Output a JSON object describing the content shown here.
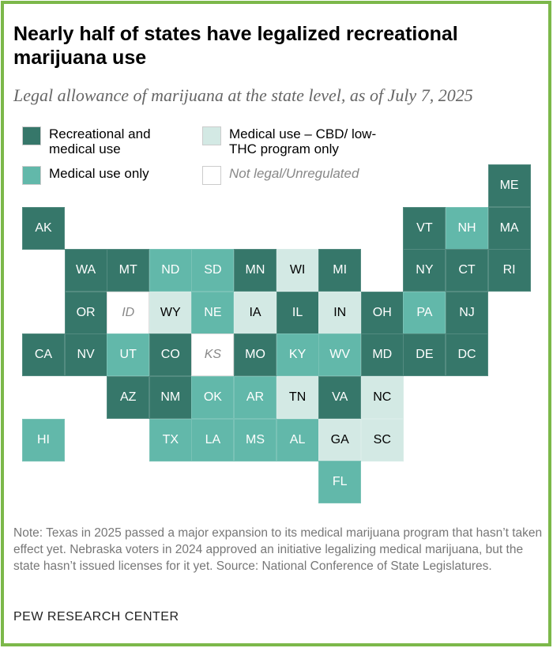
{
  "title": "Nearly half of states have legalized recreational marijuana use",
  "subtitle": "Legal allowance of marijuana at the state level, as of July 7, 2025",
  "legend": [
    {
      "key": "R",
      "label": "Recreational and medical use",
      "color": "#36776a"
    },
    {
      "key": "C",
      "label": "Medical use – CBD/ low-THC program only",
      "color": "#d3e9e4"
    },
    {
      "key": "M",
      "label": "Medical use only",
      "color": "#62b8aa"
    },
    {
      "key": "N",
      "label": "Not legal/Unregulated",
      "color": "#ffffff"
    }
  ],
  "states": [
    {
      "abbr": "ME",
      "cat": "R",
      "row": 0,
      "col": 11
    },
    {
      "abbr": "AK",
      "cat": "R",
      "row": 1,
      "col": 0
    },
    {
      "abbr": "VT",
      "cat": "R",
      "row": 1,
      "col": 9
    },
    {
      "abbr": "NH",
      "cat": "M",
      "row": 1,
      "col": 10
    },
    {
      "abbr": "MA",
      "cat": "R",
      "row": 1,
      "col": 11
    },
    {
      "abbr": "WA",
      "cat": "R",
      "row": 2,
      "col": 1
    },
    {
      "abbr": "MT",
      "cat": "R",
      "row": 2,
      "col": 2
    },
    {
      "abbr": "ND",
      "cat": "M",
      "row": 2,
      "col": 3
    },
    {
      "abbr": "SD",
      "cat": "M",
      "row": 2,
      "col": 4
    },
    {
      "abbr": "MN",
      "cat": "R",
      "row": 2,
      "col": 5
    },
    {
      "abbr": "WI",
      "cat": "C",
      "row": 2,
      "col": 6
    },
    {
      "abbr": "MI",
      "cat": "R",
      "row": 2,
      "col": 7
    },
    {
      "abbr": "NY",
      "cat": "R",
      "row": 2,
      "col": 9
    },
    {
      "abbr": "CT",
      "cat": "R",
      "row": 2,
      "col": 10
    },
    {
      "abbr": "RI",
      "cat": "R",
      "row": 2,
      "col": 11
    },
    {
      "abbr": "OR",
      "cat": "R",
      "row": 3,
      "col": 1
    },
    {
      "abbr": "ID",
      "cat": "N",
      "row": 3,
      "col": 2
    },
    {
      "abbr": "WY",
      "cat": "C",
      "row": 3,
      "col": 3
    },
    {
      "abbr": "NE",
      "cat": "M",
      "row": 3,
      "col": 4
    },
    {
      "abbr": "IA",
      "cat": "C",
      "row": 3,
      "col": 5
    },
    {
      "abbr": "IL",
      "cat": "R",
      "row": 3,
      "col": 6
    },
    {
      "abbr": "IN",
      "cat": "C",
      "row": 3,
      "col": 7
    },
    {
      "abbr": "OH",
      "cat": "R",
      "row": 3,
      "col": 8
    },
    {
      "abbr": "PA",
      "cat": "M",
      "row": 3,
      "col": 9
    },
    {
      "abbr": "NJ",
      "cat": "R",
      "row": 3,
      "col": 10
    },
    {
      "abbr": "CA",
      "cat": "R",
      "row": 4,
      "col": 0
    },
    {
      "abbr": "NV",
      "cat": "R",
      "row": 4,
      "col": 1
    },
    {
      "abbr": "UT",
      "cat": "M",
      "row": 4,
      "col": 2
    },
    {
      "abbr": "CO",
      "cat": "R",
      "row": 4,
      "col": 3
    },
    {
      "abbr": "KS",
      "cat": "N",
      "row": 4,
      "col": 4
    },
    {
      "abbr": "MO",
      "cat": "R",
      "row": 4,
      "col": 5
    },
    {
      "abbr": "KY",
      "cat": "M",
      "row": 4,
      "col": 6
    },
    {
      "abbr": "WV",
      "cat": "M",
      "row": 4,
      "col": 7
    },
    {
      "abbr": "MD",
      "cat": "R",
      "row": 4,
      "col": 8
    },
    {
      "abbr": "DE",
      "cat": "R",
      "row": 4,
      "col": 9
    },
    {
      "abbr": "DC",
      "cat": "R",
      "row": 4,
      "col": 10
    },
    {
      "abbr": "AZ",
      "cat": "R",
      "row": 5,
      "col": 2
    },
    {
      "abbr": "NM",
      "cat": "R",
      "row": 5,
      "col": 3
    },
    {
      "abbr": "OK",
      "cat": "M",
      "row": 5,
      "col": 4
    },
    {
      "abbr": "AR",
      "cat": "M",
      "row": 5,
      "col": 5
    },
    {
      "abbr": "TN",
      "cat": "C",
      "row": 5,
      "col": 6
    },
    {
      "abbr": "VA",
      "cat": "R",
      "row": 5,
      "col": 7
    },
    {
      "abbr": "NC",
      "cat": "C",
      "row": 5,
      "col": 8
    },
    {
      "abbr": "HI",
      "cat": "M",
      "row": 6,
      "col": 0
    },
    {
      "abbr": "TX",
      "cat": "M",
      "row": 6,
      "col": 3
    },
    {
      "abbr": "LA",
      "cat": "M",
      "row": 6,
      "col": 4
    },
    {
      "abbr": "MS",
      "cat": "M",
      "row": 6,
      "col": 5
    },
    {
      "abbr": "AL",
      "cat": "M",
      "row": 6,
      "col": 6
    },
    {
      "abbr": "GA",
      "cat": "C",
      "row": 6,
      "col": 7
    },
    {
      "abbr": "SC",
      "cat": "C",
      "row": 6,
      "col": 8
    },
    {
      "abbr": "FL",
      "cat": "M",
      "row": 7,
      "col": 7
    }
  ],
  "note": "Note: Texas in 2025 passed a major expansion to its medical marijuana program that hasn’t taken effect yet. Nebraska voters in 2024 approved an initiative legalizing medical marijuana, but the state hasn’t issued licenses for it yet.",
  "source": "Source: National Conference of State Legislatures.",
  "brand": "PEW RESEARCH CENTER"
}
